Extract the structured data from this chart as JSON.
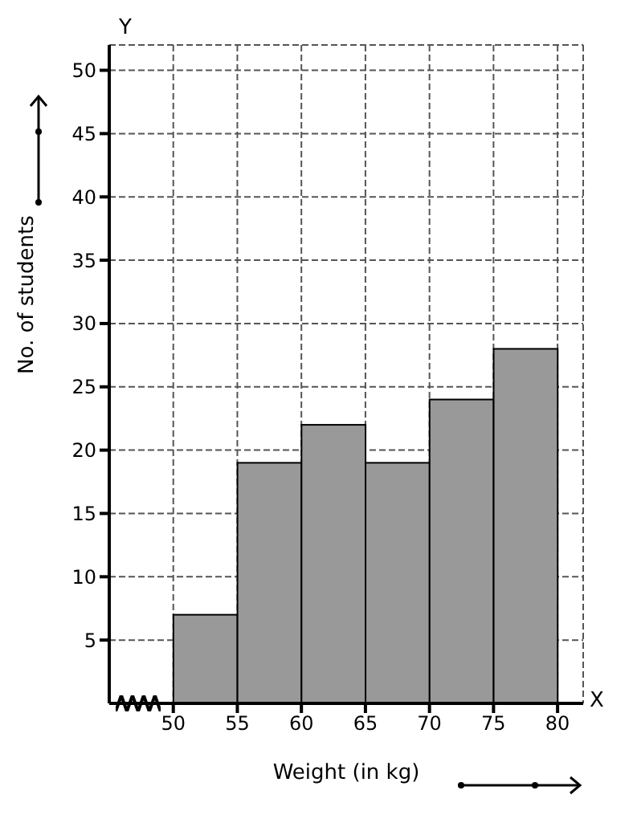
{
  "chart_data": {
    "type": "histogram",
    "xlabel": "Weight (in kg)",
    "ylabel": "No. of students",
    "bins": [
      50,
      55,
      60,
      65,
      70,
      75,
      80
    ],
    "values": [
      7,
      19,
      22,
      19,
      24,
      28
    ],
    "color": "#999999",
    "xlim": [
      45,
      82
    ],
    "xticks": [
      50,
      55,
      60,
      65,
      70,
      75,
      80
    ],
    "ylim": [
      0,
      52
    ],
    "yticks": [
      5,
      10,
      15,
      20,
      25,
      30,
      35,
      40,
      45,
      50
    ],
    "grid": true,
    "annotations": [
      "Y",
      "X"
    ]
  }
}
